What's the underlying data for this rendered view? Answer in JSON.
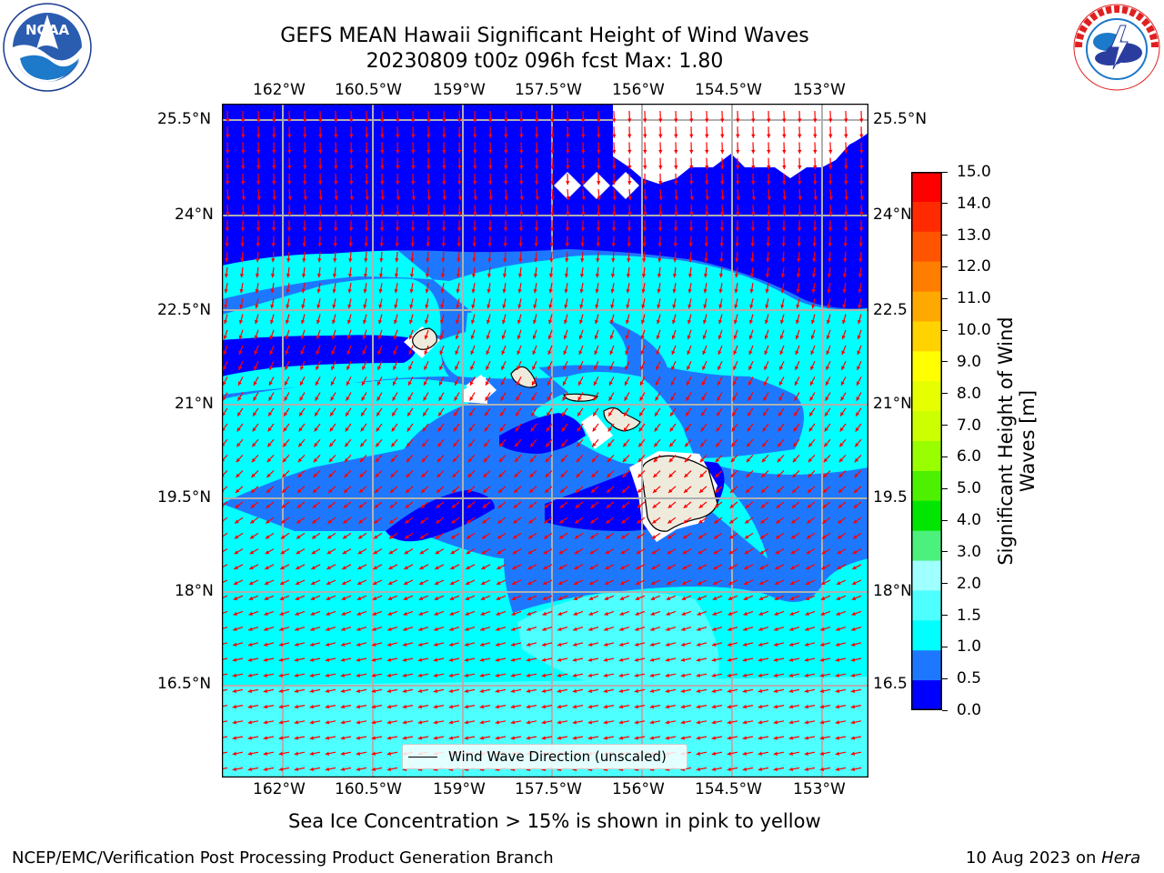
{
  "title": {
    "line1": "GEFS MEAN Hawaii Significant Height of Wind Waves",
    "line2": "20230809 t00z 096h fcst   Max: 1.80"
  },
  "logos": {
    "noara_text": "NOAA",
    "noara_ring": "NATIONAL OCEANIC AND ATMOSPHERIC ADMINISTRATION · U.S. DEPARTMENT OF COMMERCE",
    "nws_ring": "NATIONAL WEATHER SERVICE"
  },
  "map": {
    "lon_labels": [
      "162°W",
      "160.5°W",
      "159°W",
      "157.5°W",
      "156°W",
      "154.5°W",
      "153°W"
    ],
    "lat_labels": [
      "25.5°N",
      "24°N",
      "22.5°N",
      "21°N",
      "19.5°N",
      "18°N",
      "16.5°N"
    ],
    "right_lat_labels": [
      "25.5°N",
      "24°N",
      "22.5",
      "21°N",
      "19.5",
      "18°N",
      "16.5"
    ],
    "legend": "Wind Wave Direction (unscaled)",
    "colors": {
      "level_0": "#0000ff",
      "level_1": "#1e78ff",
      "level_2": "#00ffff",
      "level_3": "#4dffff",
      "land": "#efebdc",
      "arrow": "#ff0000"
    }
  },
  "colorbar": {
    "label": "Significant Height of Wind Waves [m]",
    "ticks": [
      "15.0",
      "14.0",
      "13.0",
      "12.0",
      "11.0",
      "10.0",
      "9.0",
      "8.0",
      "7.0",
      "6.0",
      "5.0",
      "4.0",
      "3.0",
      "2.0",
      "1.5",
      "1.0",
      "0.5",
      "0.0"
    ],
    "colors": [
      "#ff0000",
      "#ff2a00",
      "#ff5400",
      "#ff7e00",
      "#ffa800",
      "#ffd200",
      "#ffff00",
      "#e6ff00",
      "#ccff00",
      "#99ff00",
      "#4cf000",
      "#00e600",
      "#4cf07c",
      "#a0ffff",
      "#4dffff",
      "#00ffff",
      "#1e78ff",
      "#0000ff"
    ]
  },
  "footer": {
    "ice_note": "Sea Ice Concentration > 15% is shown in pink to yellow",
    "branch": "NCEP/EMC/Verification Post Processing Product Generation Branch",
    "date": "10 Aug 2023 on ",
    "machine": "Hera"
  }
}
